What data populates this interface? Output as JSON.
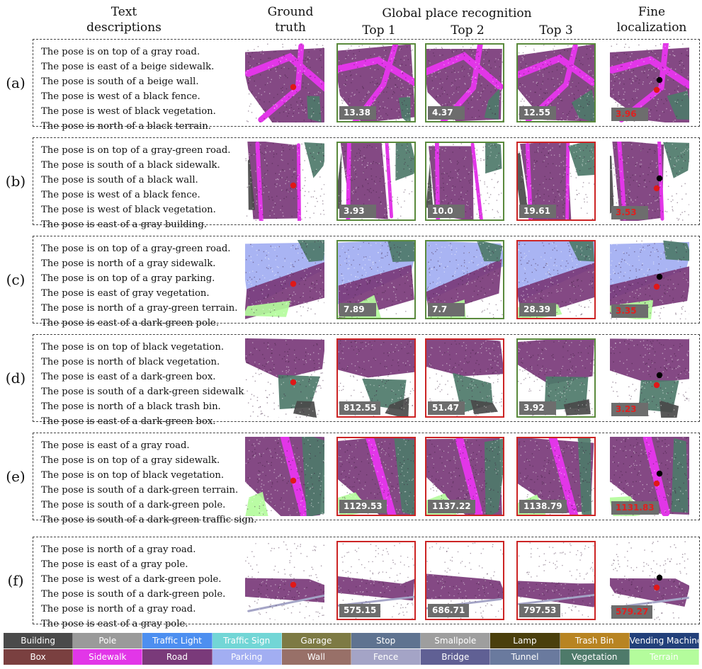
{
  "headers": {
    "text_desc": [
      "Text",
      "descriptions"
    ],
    "ground_truth": [
      "Ground",
      "truth"
    ],
    "global": "Global place recognition",
    "top1": "Top 1",
    "top2": "Top 2",
    "top3": "Top 3",
    "fine": [
      "Fine",
      "localization"
    ]
  },
  "rows": [
    {
      "label": "(a)",
      "texts": [
        "The pose is on top of a gray road.",
        "The pose is east of a beige sidewalk.",
        "The pose is south of a beige wall.",
        "The pose is west of a black fence.",
        "The pose is west of black vegetation.",
        "The pose is north of a black terrain."
      ],
      "top": [
        {
          "score": "13.38",
          "status": "correct"
        },
        {
          "score": "4.37",
          "status": "correct"
        },
        {
          "score": "12.55",
          "status": "correct"
        }
      ],
      "fine": "3.96"
    },
    {
      "label": "(b)",
      "texts": [
        "The pose is on top of a gray-green road.",
        "The pose is south of a black sidewalk.",
        "The pose is south of a black wall.",
        "The pose is west of a black fence.",
        "The pose is west of black vegetation.",
        "The pose is east of a gray building."
      ],
      "top": [
        {
          "score": "3.93",
          "status": "correct"
        },
        {
          "score": "10.0",
          "status": "correct"
        },
        {
          "score": "19.61",
          "status": "wrong"
        }
      ],
      "fine": "3.53"
    },
    {
      "label": "(c)",
      "texts": [
        "The pose is on top of a gray-green road.",
        "The pose is north of a gray sidewalk.",
        "The pose is on top of a gray parking.",
        "The pose is east of gray vegetation.",
        "The pose is north of a gray-green terrain.",
        "The pose is east of a dark-green pole."
      ],
      "top": [
        {
          "score": "7.89",
          "status": "correct"
        },
        {
          "score": "7.7",
          "status": "correct"
        },
        {
          "score": "28.39",
          "status": "wrong"
        }
      ],
      "fine": "3.35"
    },
    {
      "label": "(d)",
      "texts": [
        "The pose is on top of black vegetation.",
        "The pose is north of black vegetation.",
        "The pose is east of a dark-green box.",
        "The pose is south of a dark-green sidewalk.",
        "The pose is north of a black trash bin.",
        "The pose is east of a dark-green box."
      ],
      "top": [
        {
          "score": "812.55",
          "status": "wrong"
        },
        {
          "score": "51.47",
          "status": "wrong"
        },
        {
          "score": "3.92",
          "status": "correct"
        }
      ],
      "fine": "3.23"
    },
    {
      "label": "(e)",
      "texts": [
        "The pose is east of a gray road.",
        "The pose is on top of a gray sidewalk.",
        "The pose is on top of black vegetation.",
        "The pose is south of a dark-green terrain.",
        "The pose is south of a dark-green pole.",
        "The pose is south of a dark-green traffic sign."
      ],
      "top": [
        {
          "score": "1129.53",
          "status": "wrong"
        },
        {
          "score": "1137.22",
          "status": "wrong"
        },
        {
          "score": "1138.79",
          "status": "wrong"
        }
      ],
      "fine": "1131.83"
    },
    {
      "label": "(f)",
      "texts": [
        "The pose is north of a gray road.",
        "The pose is east of a gray pole.",
        "The pose is west of a dark-green pole.",
        "The pose is south of a dark-green pole.",
        "The pose is north of a gray road.",
        "The pose is east of a gray pole."
      ],
      "top": [
        {
          "score": "575.15",
          "status": "wrong"
        },
        {
          "score": "686.71",
          "status": "wrong"
        },
        {
          "score": "797.53",
          "status": "wrong"
        }
      ],
      "fine": "579.27"
    }
  ],
  "legend": [
    {
      "label": "Building",
      "color": "#4a4a4a"
    },
    {
      "label": "Pole",
      "color": "#9a9a9a"
    },
    {
      "label": "Traffic Light",
      "color": "#4d8ff0"
    },
    {
      "label": "Traffic Sign",
      "color": "#72d6d6"
    },
    {
      "label": "Garage",
      "color": "#7d7a44"
    },
    {
      "label": "Stop",
      "color": "#5f7390"
    },
    {
      "label": "Smallpole",
      "color": "#9e9e9e"
    },
    {
      "label": "Lamp",
      "color": "#4a3f0c"
    },
    {
      "label": "Trash Bin",
      "color": "#b88422"
    },
    {
      "label": "Vending Machine",
      "color": "#22407a"
    },
    {
      "label": "Box",
      "color": "#7a4040"
    },
    {
      "label": "Sidewalk",
      "color": "#e236e8"
    },
    {
      "label": "Road",
      "color": "#7a3a7a"
    },
    {
      "label": "Parking",
      "color": "#a2aef2"
    },
    {
      "label": "Wall",
      "color": "#987068"
    },
    {
      "label": "Fence",
      "color": "#a4a4c6"
    },
    {
      "label": "Bridge",
      "color": "#606094"
    },
    {
      "label": "Tunnel",
      "color": "#6a7a9e"
    },
    {
      "label": "Vegetation",
      "color": "#4e7a6a"
    },
    {
      "label": "Terrain",
      "color": "#b4fc9c"
    }
  ],
  "colors": {
    "correct_frame": "#5a8a3c",
    "wrong_frame": "#cc2424",
    "score_box": "#6d6d6d",
    "fine_score_text": "#e02020"
  }
}
